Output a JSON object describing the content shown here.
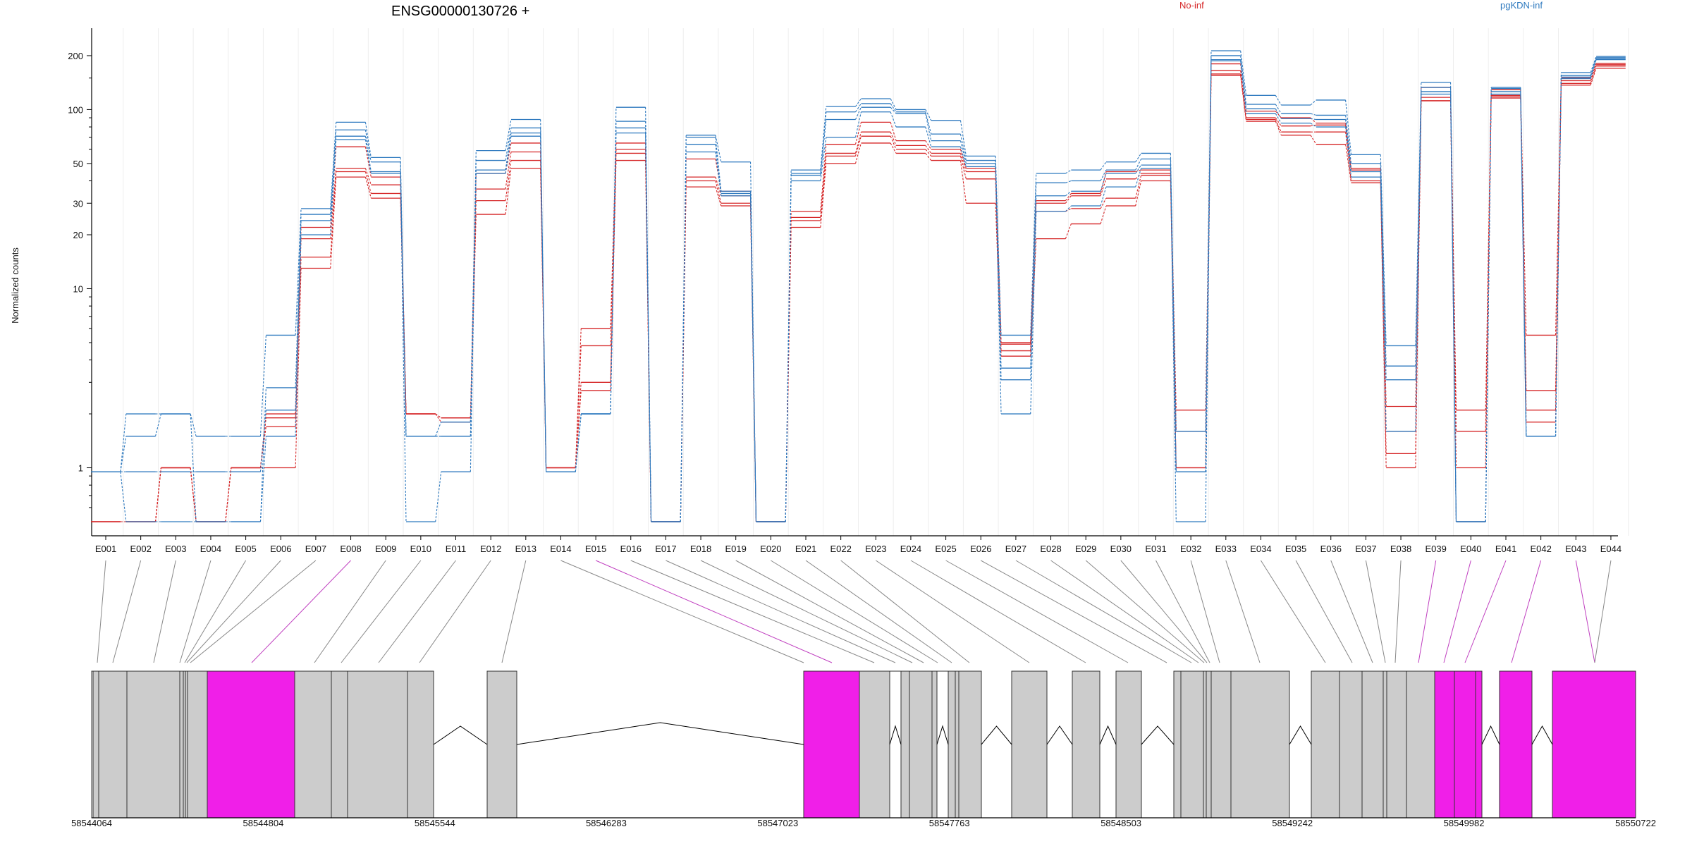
{
  "chart_data": {
    "type": "line",
    "title": "ENSG00000130726 +",
    "xlabel": "",
    "ylabel": "Normalized counts",
    "yscale": "log",
    "ylim": [
      0.5,
      260
    ],
    "yticks": [
      1,
      10,
      20,
      30,
      50,
      100,
      200
    ],
    "ytick_labels": [
      "1",
      "10",
      "20",
      "30",
      "50",
      "100",
      "200"
    ],
    "grid": "vertical light gridlines at exon boundaries",
    "legend_position": "top-right",
    "categories": [
      "E001",
      "E002",
      "E003",
      "E004",
      "E005",
      "E006",
      "E007",
      "E008",
      "E009",
      "E010",
      "E011",
      "E012",
      "E013",
      "E014",
      "E015",
      "E016",
      "E017",
      "E018",
      "E019",
      "E020",
      "E021",
      "E022",
      "E023",
      "E024",
      "E025",
      "E026",
      "E027",
      "E028",
      "E029",
      "E030",
      "E031",
      "E032",
      "E033",
      "E034",
      "E035",
      "E036",
      "E037",
      "E038",
      "E039",
      "E040",
      "E041",
      "E042",
      "E043",
      "E044"
    ],
    "colors": {
      "No-inf": "#d62728",
      "pgKDN-inf": "#2f7abf",
      "gene_exon": "#cccccc",
      "highlight_exon": "#f01fe8"
    },
    "series": [
      {
        "name": "No-inf",
        "group": "No-inf",
        "values": [
          0.5,
          0.5,
          1,
          0.5,
          1,
          1,
          13,
          42,
          32,
          2,
          1.8,
          26,
          47,
          1,
          2.7,
          52,
          0.5,
          37,
          29,
          0.5,
          22,
          50,
          65,
          57,
          52,
          30,
          4.2,
          19,
          23,
          29,
          40,
          1,
          155,
          86,
          72,
          64,
          39,
          1,
          112,
          0.5,
          116,
          1.8,
          137,
          170
        ]
      },
      {
        "name": "No-inf",
        "group": "No-inf",
        "values": [
          0.5,
          0.5,
          1,
          0.5,
          1,
          1.7,
          15,
          45,
          34,
          2,
          1.9,
          31,
          52,
          1,
          3,
          57,
          0.5,
          40,
          30,
          0.5,
          24,
          55,
          71,
          60,
          55,
          41,
          4.5,
          27,
          28,
          32,
          43,
          1,
          158,
          88,
          75,
          75,
          40,
          1.2,
          112,
          1,
          118,
          2.1,
          140,
          175
        ]
      },
      {
        "name": "No-inf",
        "group": "No-inf",
        "values": [
          0.5,
          0.5,
          1,
          0.5,
          1,
          1.9,
          19,
          47,
          38,
          2,
          1.9,
          36,
          58,
          1,
          4.8,
          60,
          0.5,
          42,
          33,
          0.5,
          25,
          57,
          75,
          63,
          57,
          45,
          4.9,
          30,
          33,
          41,
          44,
          1.6,
          165,
          90,
          81,
          82,
          46,
          1.6,
          117,
          1.6,
          120,
          2.7,
          145,
          178
        ]
      },
      {
        "name": "No-inf",
        "group": "No-inf",
        "values": [
          0.5,
          0.5,
          1,
          0.5,
          1,
          2,
          22,
          62,
          42,
          2,
          1.9,
          44,
          65,
          1,
          6,
          65,
          0.5,
          53,
          35,
          0.5,
          27,
          64,
          85,
          67,
          60,
          47,
          5,
          31,
          34,
          45,
          46,
          2.1,
          180,
          98,
          90,
          84,
          47,
          2.2,
          133,
          2.1,
          129,
          5.5,
          150,
          181
        ]
      },
      {
        "name": "pgKDN-inf",
        "group": "pgKDN-inf",
        "values": [
          0.95,
          0.5,
          0.5,
          0.5,
          0.5,
          1.5,
          20,
          68,
          44,
          0.5,
          0.95,
          44,
          71,
          0.95,
          2,
          74,
          0.5,
          58,
          33,
          0.5,
          40,
          70,
          97,
          80,
          62,
          48,
          2,
          27,
          29,
          37,
          47,
          0.5,
          187,
          95,
          84,
          80,
          42,
          1.6,
          122,
          0.5,
          122,
          1.5,
          149,
          190
        ]
      },
      {
        "name": "pgKDN-inf",
        "group": "pgKDN-inf",
        "values": [
          0.95,
          0.95,
          0.95,
          0.95,
          0.95,
          2.1,
          24,
          71,
          45,
          1.5,
          1.5,
          46,
          74,
          0.95,
          2,
          79,
          0.5,
          64,
          34,
          0.5,
          43,
          88,
          103,
          95,
          67,
          50,
          3.1,
          33,
          35,
          44,
          49,
          0.95,
          190,
          101,
          89,
          88,
          45,
          3.1,
          126,
          0.5,
          126,
          1.5,
          152,
          192
        ]
      },
      {
        "name": "pgKDN-inf",
        "group": "pgKDN-inf",
        "values": [
          0.95,
          1.5,
          2,
          0.5,
          0.5,
          2.8,
          26,
          77,
          51,
          1.5,
          1.5,
          52,
          79,
          0.95,
          2,
          86,
          0.5,
          70,
          35,
          0.5,
          44,
          97,
          108,
          97,
          73,
          52,
          3.6,
          39,
          40,
          46,
          53,
          0.95,
          200,
          107,
          95,
          93,
          50,
          3.7,
          133,
          0.5,
          131,
          1.5,
          155,
          195
        ]
      },
      {
        "name": "pgKDN-inf",
        "group": "pgKDN-inf",
        "values": [
          0.95,
          2,
          2,
          1.5,
          1.5,
          5.5,
          28,
          85,
          54,
          1.5,
          1.8,
          59,
          88,
          0.95,
          2,
          103,
          0.5,
          72,
          51,
          0.5,
          46,
          104,
          115,
          100,
          87,
          55,
          5.5,
          44,
          46,
          51,
          57,
          1.6,
          213,
          120,
          106,
          113,
          56,
          4.8,
          142,
          0.5,
          133,
          1.5,
          161,
          198
        ]
      }
    ],
    "legend": [
      "No-inf",
      "pgKDN-inf"
    ],
    "genomic_axis": {
      "tick_labels": [
        "58544064",
        "58544804",
        "58545544",
        "58546283",
        "58547023",
        "58547763",
        "58548503",
        "58549242",
        "58549982",
        "58550722"
      ]
    }
  }
}
